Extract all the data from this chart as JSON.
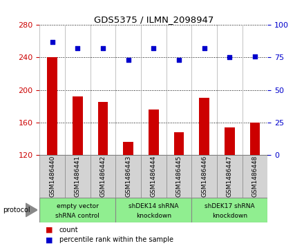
{
  "title": "GDS5375 / ILMN_2098947",
  "samples": [
    "GSM1486440",
    "GSM1486441",
    "GSM1486442",
    "GSM1486443",
    "GSM1486444",
    "GSM1486445",
    "GSM1486446",
    "GSM1486447",
    "GSM1486448"
  ],
  "counts": [
    240,
    192,
    185,
    136,
    176,
    148,
    190,
    154,
    160
  ],
  "percentiles": [
    87,
    82,
    82,
    73,
    82,
    73,
    82,
    75,
    76
  ],
  "ylim_left": [
    120,
    280
  ],
  "yticks_left": [
    120,
    160,
    200,
    240,
    280
  ],
  "ylim_right": [
    0,
    100
  ],
  "yticks_right": [
    0,
    25,
    50,
    75,
    100
  ],
  "bar_color": "#cc0000",
  "dot_color": "#0000cc",
  "bar_bottom": 120,
  "groups": [
    {
      "label": "empty vector\nshRNA control",
      "start": 0,
      "end": 3,
      "color": "#90EE90"
    },
    {
      "label": "shDEK14 shRNA\nknockdown",
      "start": 3,
      "end": 6,
      "color": "#90EE90"
    },
    {
      "label": "shDEK17 shRNA\nknockdown",
      "start": 6,
      "end": 9,
      "color": "#90EE90"
    }
  ],
  "protocol_label": "protocol",
  "legend_count_label": "count",
  "legend_percentile_label": "percentile rank within the sample",
  "grid_color": "black",
  "background_color": "#ffffff",
  "plot_bg_color": "#ffffff",
  "tick_color_left": "#cc0000",
  "tick_color_right": "#0000cc",
  "sample_box_color": "#d3d3d3",
  "bar_width": 0.4
}
